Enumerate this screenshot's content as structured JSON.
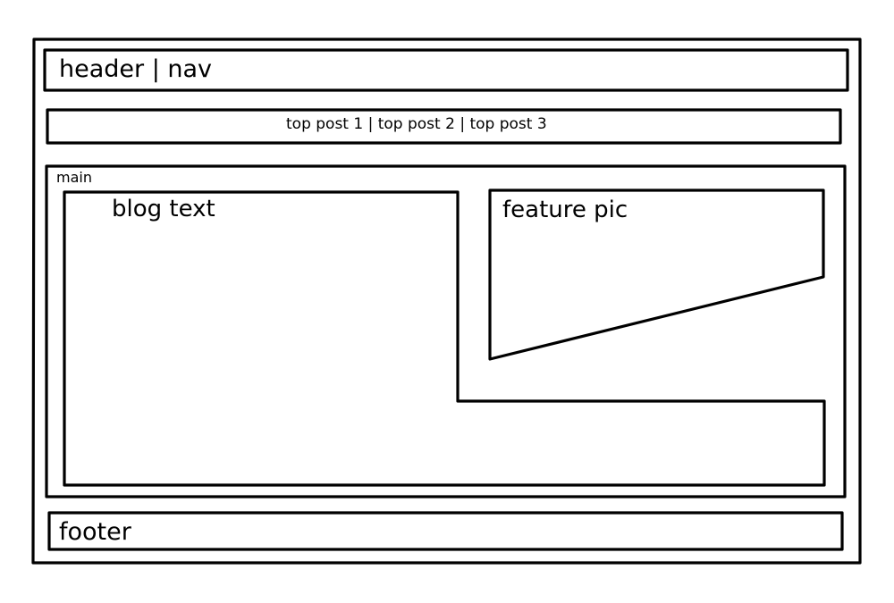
{
  "header": {
    "label": "header | nav"
  },
  "top_posts": {
    "label": "top post 1 | top post 2 | top post 3"
  },
  "main": {
    "label": "main",
    "blog": {
      "label": "blog text"
    },
    "feature": {
      "label": "feature pic"
    }
  },
  "footer": {
    "label": "footer"
  },
  "colors": {
    "stroke": "#000000",
    "background": "#ffffff"
  }
}
